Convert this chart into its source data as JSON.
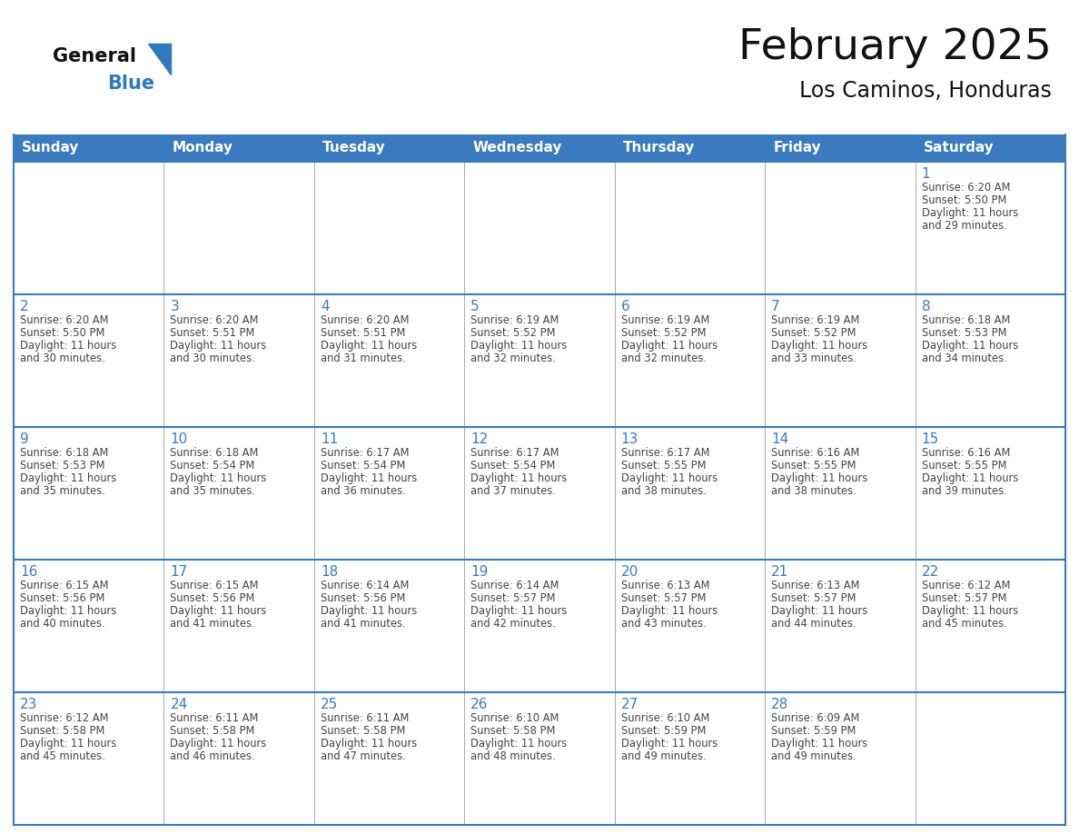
{
  "title": "February 2025",
  "subtitle": "Los Caminos, Honduras",
  "header_bg": "#3a7abf",
  "header_text_color": "#ffffff",
  "day_number_color": "#3a7abf",
  "text_color": "#444444",
  "border_color": "#3a7abf",
  "cell_line_color": "#aaaaaa",
  "days_of_week": [
    "Sunday",
    "Monday",
    "Tuesday",
    "Wednesday",
    "Thursday",
    "Friday",
    "Saturday"
  ],
  "calendar": [
    [
      null,
      null,
      null,
      null,
      null,
      null,
      {
        "day": 1,
        "sunrise": "6:20 AM",
        "sunset": "5:50 PM",
        "daylight": "11 hours\nand 29 minutes."
      }
    ],
    [
      {
        "day": 2,
        "sunrise": "6:20 AM",
        "sunset": "5:50 PM",
        "daylight": "11 hours\nand 30 minutes."
      },
      {
        "day": 3,
        "sunrise": "6:20 AM",
        "sunset": "5:51 PM",
        "daylight": "11 hours\nand 30 minutes."
      },
      {
        "day": 4,
        "sunrise": "6:20 AM",
        "sunset": "5:51 PM",
        "daylight": "11 hours\nand 31 minutes."
      },
      {
        "day": 5,
        "sunrise": "6:19 AM",
        "sunset": "5:52 PM",
        "daylight": "11 hours\nand 32 minutes."
      },
      {
        "day": 6,
        "sunrise": "6:19 AM",
        "sunset": "5:52 PM",
        "daylight": "11 hours\nand 32 minutes."
      },
      {
        "day": 7,
        "sunrise": "6:19 AM",
        "sunset": "5:52 PM",
        "daylight": "11 hours\nand 33 minutes."
      },
      {
        "day": 8,
        "sunrise": "6:18 AM",
        "sunset": "5:53 PM",
        "daylight": "11 hours\nand 34 minutes."
      }
    ],
    [
      {
        "day": 9,
        "sunrise": "6:18 AM",
        "sunset": "5:53 PM",
        "daylight": "11 hours\nand 35 minutes."
      },
      {
        "day": 10,
        "sunrise": "6:18 AM",
        "sunset": "5:54 PM",
        "daylight": "11 hours\nand 35 minutes."
      },
      {
        "day": 11,
        "sunrise": "6:17 AM",
        "sunset": "5:54 PM",
        "daylight": "11 hours\nand 36 minutes."
      },
      {
        "day": 12,
        "sunrise": "6:17 AM",
        "sunset": "5:54 PM",
        "daylight": "11 hours\nand 37 minutes."
      },
      {
        "day": 13,
        "sunrise": "6:17 AM",
        "sunset": "5:55 PM",
        "daylight": "11 hours\nand 38 minutes."
      },
      {
        "day": 14,
        "sunrise": "6:16 AM",
        "sunset": "5:55 PM",
        "daylight": "11 hours\nand 38 minutes."
      },
      {
        "day": 15,
        "sunrise": "6:16 AM",
        "sunset": "5:55 PM",
        "daylight": "11 hours\nand 39 minutes."
      }
    ],
    [
      {
        "day": 16,
        "sunrise": "6:15 AM",
        "sunset": "5:56 PM",
        "daylight": "11 hours\nand 40 minutes."
      },
      {
        "day": 17,
        "sunrise": "6:15 AM",
        "sunset": "5:56 PM",
        "daylight": "11 hours\nand 41 minutes."
      },
      {
        "day": 18,
        "sunrise": "6:14 AM",
        "sunset": "5:56 PM",
        "daylight": "11 hours\nand 41 minutes."
      },
      {
        "day": 19,
        "sunrise": "6:14 AM",
        "sunset": "5:57 PM",
        "daylight": "11 hours\nand 42 minutes."
      },
      {
        "day": 20,
        "sunrise": "6:13 AM",
        "sunset": "5:57 PM",
        "daylight": "11 hours\nand 43 minutes."
      },
      {
        "day": 21,
        "sunrise": "6:13 AM",
        "sunset": "5:57 PM",
        "daylight": "11 hours\nand 44 minutes."
      },
      {
        "day": 22,
        "sunrise": "6:12 AM",
        "sunset": "5:57 PM",
        "daylight": "11 hours\nand 45 minutes."
      }
    ],
    [
      {
        "day": 23,
        "sunrise": "6:12 AM",
        "sunset": "5:58 PM",
        "daylight": "11 hours\nand 45 minutes."
      },
      {
        "day": 24,
        "sunrise": "6:11 AM",
        "sunset": "5:58 PM",
        "daylight": "11 hours\nand 46 minutes."
      },
      {
        "day": 25,
        "sunrise": "6:11 AM",
        "sunset": "5:58 PM",
        "daylight": "11 hours\nand 47 minutes."
      },
      {
        "day": 26,
        "sunrise": "6:10 AM",
        "sunset": "5:58 PM",
        "daylight": "11 hours\nand 48 minutes."
      },
      {
        "day": 27,
        "sunrise": "6:10 AM",
        "sunset": "5:59 PM",
        "daylight": "11 hours\nand 49 minutes."
      },
      {
        "day": 28,
        "sunrise": "6:09 AM",
        "sunset": "5:59 PM",
        "daylight": "11 hours\nand 49 minutes."
      },
      null
    ]
  ],
  "logo_general_color": "#111111",
  "logo_blue_color": "#2f7abf",
  "figsize": [
    11.88,
    9.18
  ],
  "dpi": 100
}
